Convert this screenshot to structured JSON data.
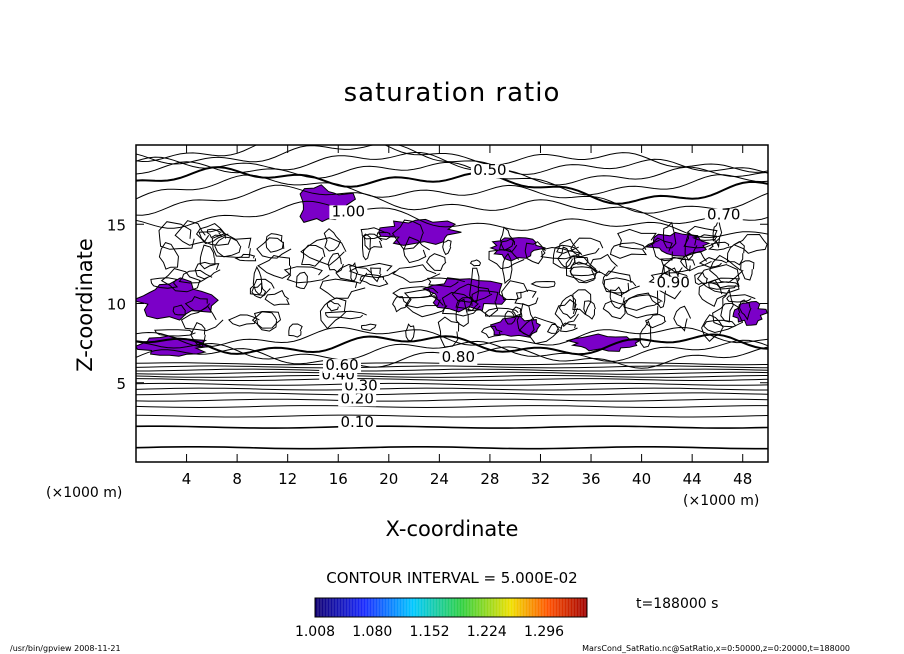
{
  "chart_data": {
    "type": "contour",
    "title": "saturation ratio",
    "xlabel": "X-coordinate",
    "ylabel": "Z-coordinate",
    "x_unit": "(×1000 m)",
    "y_unit": "(×1000 m)",
    "xlim": [
      0,
      50
    ],
    "ylim": [
      0,
      20
    ],
    "x_ticks": [
      "4",
      "8",
      "12",
      "16",
      "20",
      "24",
      "28",
      "32",
      "36",
      "40",
      "44",
      "48"
    ],
    "y_ticks": [
      "5",
      "10",
      "15"
    ],
    "contour_labels": [
      {
        "text": "0.10",
        "x": 17.5,
        "z": 2.2
      },
      {
        "text": "0.20",
        "x": 17.5,
        "z": 3.7
      },
      {
        "text": "0.30",
        "x": 17.8,
        "z": 4.5
      },
      {
        "text": "0.40",
        "x": 16.0,
        "z": 5.2
      },
      {
        "text": "0.50",
        "x": 28.0,
        "z": 18.1
      },
      {
        "text": "0.60",
        "x": 16.3,
        "z": 5.8
      },
      {
        "text": "0.70",
        "x": 46.5,
        "z": 15.3
      },
      {
        "text": "0.80",
        "x": 25.5,
        "z": 6.3
      },
      {
        "text": "0.90",
        "x": 42.5,
        "z": 11.0
      },
      {
        "text": "1.00",
        "x": 16.8,
        "z": 15.5
      }
    ],
    "shaded_threshold": 1.0,
    "contour_interval": "CONTOUR INTERVAL = 5.000E-02",
    "colorbar_labels": [
      "1.008",
      "1.080",
      "1.152",
      "1.224",
      "1.296"
    ],
    "colorbar_range": [
      1.008,
      1.35
    ],
    "time_label": "t=188000 s",
    "colors": {
      "shade": "#7b00c8",
      "line": "#000000"
    }
  },
  "footer": {
    "left": "/usr/bin/gpview  2008-11-21",
    "right": "MarsCond_SatRatio.nc@SatRatio,x=0:50000,z=0:20000,t=188000"
  }
}
